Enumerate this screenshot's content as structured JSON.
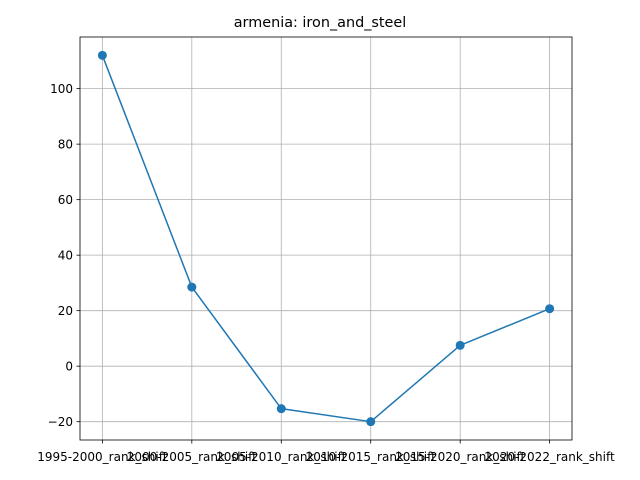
{
  "chart_data": {
    "type": "line",
    "title": "armenia: iron_and_steel",
    "xlabel": "",
    "ylabel": "",
    "categories": [
      "1995-2000_rank_shift",
      "2000-2005_rank_shift",
      "2005-2010_rank_shift",
      "2010-2015_rank_shift",
      "2015-2020_rank_shift",
      "2020-2022_rank_shift"
    ],
    "series": [
      {
        "values": [
          112,
          28.5,
          -15.3,
          -20,
          7.5,
          20.7
        ]
      }
    ],
    "ylim": [
      -26.6,
      118.6
    ],
    "yticks": [
      -20,
      0,
      20,
      40,
      60,
      80,
      100
    ],
    "grid": true,
    "colors": {
      "line": "#1f77b4",
      "grid": "#b0b0b0",
      "axis": "#000000"
    }
  }
}
